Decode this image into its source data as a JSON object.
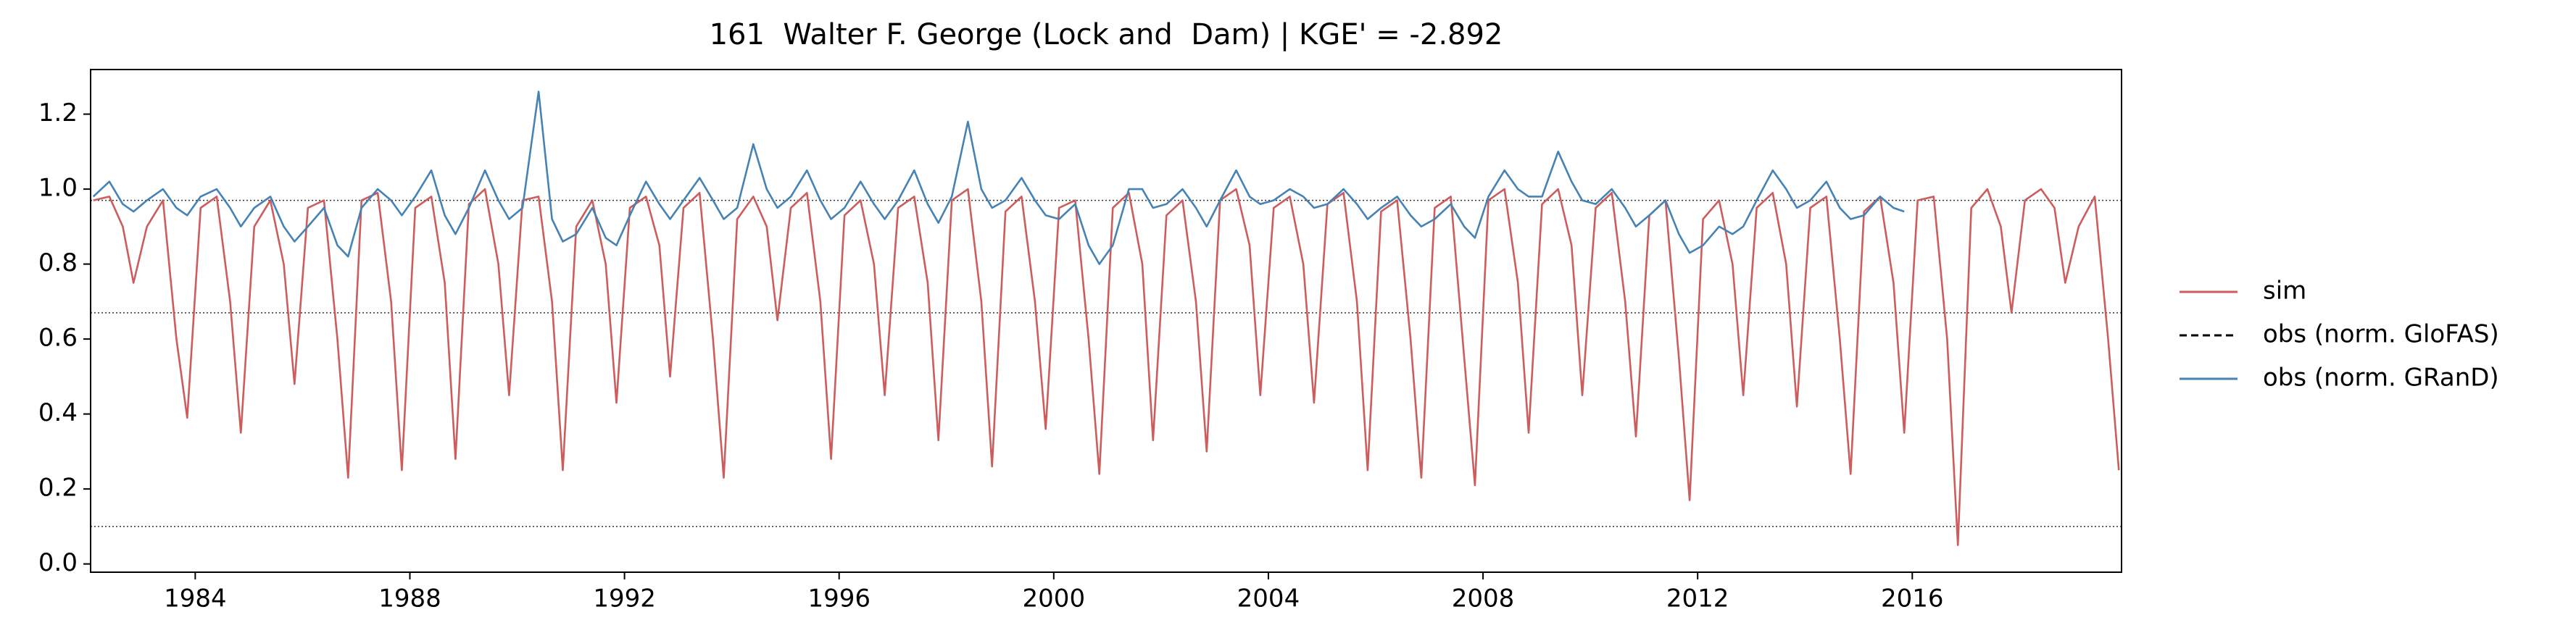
{
  "chart_data": {
    "type": "line",
    "title": "161  Walter F. George (Lock and  Dam) | KGE' = -2.892",
    "xlim": [
      1982.05,
      2019.9
    ],
    "xticks": [
      1984,
      1988,
      1992,
      1996,
      2000,
      2004,
      2008,
      2012,
      2016
    ],
    "ylim": [
      -0.022,
      1.319
    ],
    "yticks": [
      {
        "value": 0,
        "label": "0.0"
      },
      0.2,
      0.4,
      0.6,
      0.8,
      {
        "value": 1,
        "label": "1.0"
      },
      1.2
    ],
    "hlines": [
      0.97,
      0.67,
      0.1
    ],
    "legend": "right",
    "x": [
      1982.1,
      1982.4,
      1982.65,
      1982.85,
      1983.1,
      1983.4,
      1983.65,
      1983.85,
      1984.1,
      1984.4,
      1984.65,
      1984.85,
      1985.1,
      1985.4,
      1985.65,
      1985.85,
      1986.1,
      1986.4,
      1986.65,
      1986.85,
      1987.1,
      1987.4,
      1987.65,
      1987.85,
      1988.1,
      1988.4,
      1988.65,
      1988.85,
      1989.1,
      1989.4,
      1989.65,
      1989.85,
      1990.1,
      1990.4,
      1990.65,
      1990.85,
      1991.1,
      1991.4,
      1991.65,
      1991.85,
      1992.1,
      1992.4,
      1992.65,
      1992.85,
      1993.1,
      1993.4,
      1993.65,
      1993.85,
      1994.1,
      1994.4,
      1994.65,
      1994.85,
      1995.1,
      1995.4,
      1995.65,
      1995.85,
      1996.1,
      1996.4,
      1996.65,
      1996.85,
      1997.1,
      1997.4,
      1997.65,
      1997.85,
      1998.1,
      1998.4,
      1998.65,
      1998.85,
      1999.1,
      1999.4,
      1999.65,
      1999.85,
      2000.1,
      2000.4,
      2000.65,
      2000.85,
      2001.1,
      2001.4,
      2001.65,
      2001.85,
      2002.1,
      2002.4,
      2002.65,
      2002.85,
      2003.1,
      2003.4,
      2003.65,
      2003.85,
      2004.1,
      2004.4,
      2004.65,
      2004.85,
      2005.1,
      2005.4,
      2005.65,
      2005.85,
      2006.1,
      2006.4,
      2006.65,
      2006.85,
      2007.1,
      2007.4,
      2007.65,
      2007.85,
      2008.1,
      2008.4,
      2008.65,
      2008.85,
      2009.1,
      2009.4,
      2009.65,
      2009.85,
      2010.1,
      2010.4,
      2010.65,
      2010.85,
      2011.1,
      2011.4,
      2011.65,
      2011.85,
      2012.1,
      2012.4,
      2012.65,
      2012.85,
      2013.1,
      2013.4,
      2013.65,
      2013.85,
      2014.1,
      2014.4,
      2014.65,
      2014.85,
      2015.1,
      2015.4,
      2015.65,
      2015.85,
      2016.1,
      2016.4,
      2016.65,
      2016.85,
      2017.1,
      2017.4,
      2017.65,
      2017.85,
      2018.1,
      2018.4,
      2018.65,
      2018.85,
      2019.1,
      2019.4,
      2019.65,
      2019.85
    ],
    "series": [
      {
        "name": "sim",
        "color": "#cd5c5c",
        "values": [
          0.97,
          0.98,
          0.9,
          0.75,
          0.9,
          0.97,
          0.6,
          0.39,
          0.95,
          0.98,
          0.7,
          0.35,
          0.9,
          0.97,
          0.8,
          0.48,
          0.95,
          0.97,
          0.6,
          0.23,
          0.97,
          0.99,
          0.7,
          0.25,
          0.95,
          0.98,
          0.75,
          0.28,
          0.96,
          1.0,
          0.8,
          0.45,
          0.97,
          0.98,
          0.7,
          0.25,
          0.9,
          0.97,
          0.8,
          0.43,
          0.95,
          0.98,
          0.85,
          0.5,
          0.95,
          0.99,
          0.6,
          0.23,
          0.92,
          0.98,
          0.9,
          0.65,
          0.95,
          0.99,
          0.7,
          0.28,
          0.93,
          0.97,
          0.8,
          0.45,
          0.95,
          0.98,
          0.75,
          0.33,
          0.97,
          1.0,
          0.7,
          0.26,
          0.94,
          0.98,
          0.7,
          0.36,
          0.95,
          0.97,
          0.6,
          0.24,
          0.95,
          0.99,
          0.8,
          0.33,
          0.93,
          0.97,
          0.7,
          0.3,
          0.97,
          1.0,
          0.85,
          0.45,
          0.95,
          0.98,
          0.8,
          0.43,
          0.96,
          0.99,
          0.7,
          0.25,
          0.94,
          0.97,
          0.6,
          0.23,
          0.95,
          0.98,
          0.55,
          0.21,
          0.97,
          1.0,
          0.75,
          0.35,
          0.96,
          1.0,
          0.85,
          0.45,
          0.95,
          0.99,
          0.7,
          0.34,
          0.93,
          0.97,
          0.55,
          0.17,
          0.92,
          0.97,
          0.8,
          0.45,
          0.95,
          0.99,
          0.8,
          0.42,
          0.95,
          0.98,
          0.6,
          0.24,
          0.94,
          0.98,
          0.75,
          0.35,
          0.97,
          0.98,
          0.6,
          0.05,
          0.95,
          1.0,
          0.9,
          0.67,
          0.97,
          1.0,
          0.95,
          0.75,
          0.9,
          0.98,
          0.6,
          0.25
        ]
      },
      {
        "name": "obs (norm. GloFAS)",
        "color": "#000000",
        "dash": true
      },
      {
        "name": "obs (norm. GRanD)",
        "color": "#4682b4",
        "values": [
          0.98,
          1.02,
          0.96,
          0.94,
          0.97,
          1.0,
          0.95,
          0.93,
          0.98,
          1.0,
          0.95,
          0.9,
          0.95,
          0.98,
          0.9,
          0.86,
          0.9,
          0.95,
          0.85,
          0.82,
          0.95,
          1.0,
          0.97,
          0.93,
          0.98,
          1.05,
          0.93,
          0.88,
          0.95,
          1.05,
          0.97,
          0.92,
          0.95,
          1.26,
          0.92,
          0.86,
          0.88,
          0.95,
          0.87,
          0.85,
          0.93,
          1.02,
          0.96,
          0.92,
          0.97,
          1.03,
          0.97,
          0.92,
          0.95,
          1.12,
          1.0,
          0.95,
          0.98,
          1.05,
          0.97,
          0.92,
          0.95,
          1.02,
          0.96,
          0.92,
          0.97,
          1.05,
          0.96,
          0.91,
          0.98,
          1.18,
          1.0,
          0.95,
          0.97,
          1.03,
          0.97,
          0.93,
          0.92,
          0.96,
          0.85,
          0.8,
          0.85,
          1.0,
          1.0,
          0.95,
          0.96,
          1.0,
          0.95,
          0.9,
          0.97,
          1.05,
          0.98,
          0.96,
          0.97,
          1.0,
          0.98,
          0.95,
          0.96,
          1.0,
          0.96,
          0.92,
          0.95,
          0.98,
          0.93,
          0.9,
          0.92,
          0.96,
          0.9,
          0.87,
          0.98,
          1.05,
          1.0,
          0.98,
          0.98,
          1.1,
          1.02,
          0.97,
          0.96,
          1.0,
          0.95,
          0.9,
          0.93,
          0.97,
          0.88,
          0.83,
          0.85,
          0.9,
          0.88,
          0.9,
          0.97,
          1.05,
          1.0,
          0.95,
          0.97,
          1.02,
          0.95,
          0.92,
          0.93,
          0.98,
          0.95,
          0.94,
          null,
          null,
          null,
          null,
          null,
          null,
          null,
          null,
          null,
          null,
          null,
          null,
          null,
          null,
          null,
          null
        ]
      }
    ]
  }
}
